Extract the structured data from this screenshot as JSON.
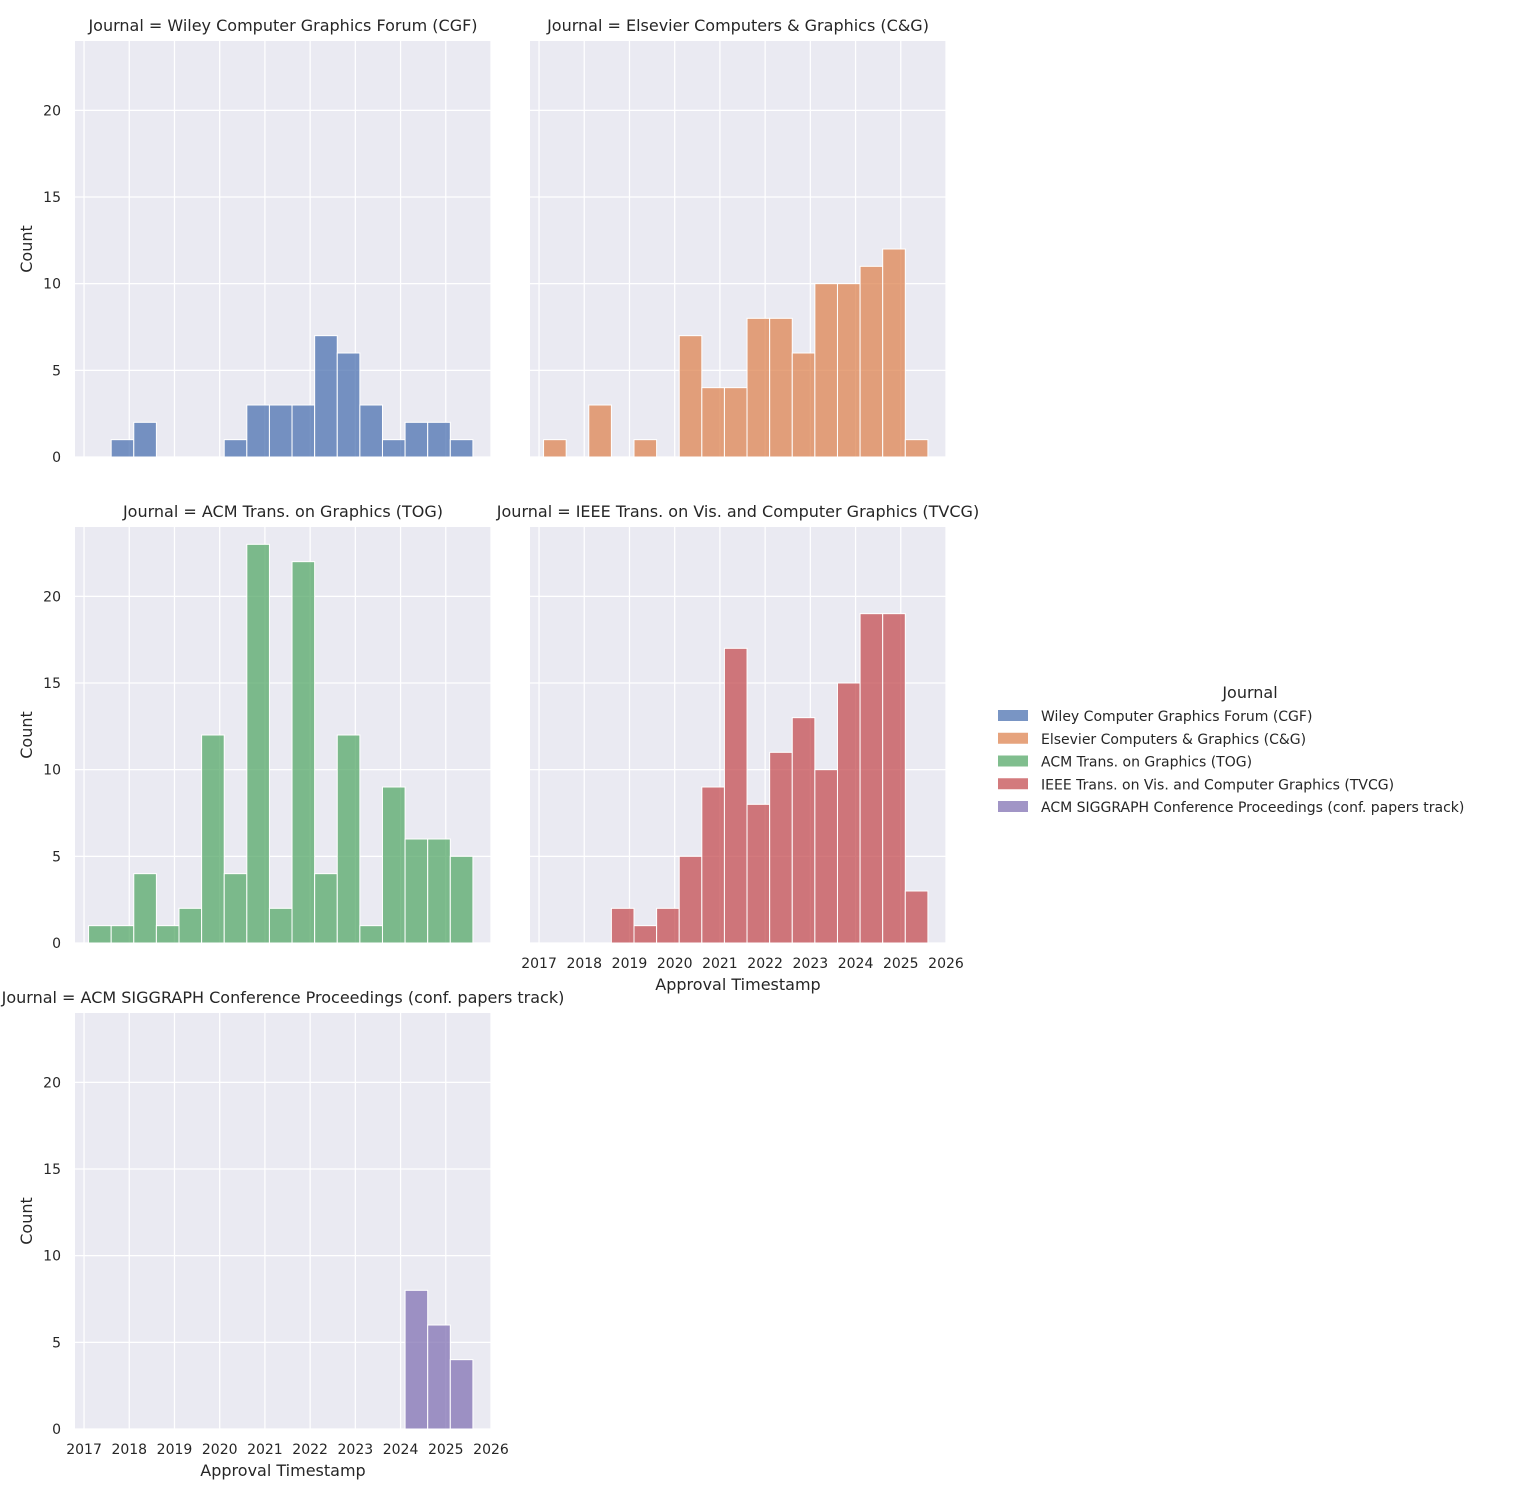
{
  "chart_data": {
    "type": "bar",
    "ylabel": "Count",
    "xlabel": "Approval Timestamp",
    "ylim": [
      0,
      24
    ],
    "xlim": [
      2016.8,
      2026
    ],
    "yticks": [
      "0",
      "5",
      "10",
      "15",
      "20"
    ],
    "xticks": [
      "2017",
      "2018",
      "2019",
      "2020",
      "2021",
      "2022",
      "2023",
      "2024",
      "2025",
      "2026"
    ],
    "bin_start": 2017.1,
    "bin_width": 0.5,
    "legend": {
      "title": "Journal",
      "entries": [
        {
          "label": "Wiley Computer Graphics Forum (CGF)",
          "color": "#4c72b0"
        },
        {
          "label": "Elsevier Computers & Graphics (C&G)",
          "color": "#dd8452"
        },
        {
          "label": "ACM Trans. on Graphics (TOG)",
          "color": "#55a868"
        },
        {
          "label": "IEEE Trans. on Vis. and Computer Graphics (TVCG)",
          "color": "#c44e52"
        },
        {
          "label": "ACM SIGGRAPH Conference Proceedings (conf. papers track)",
          "color": "#8172b3"
        }
      ]
    },
    "facets": [
      {
        "title": "Journal = Wiley Computer Graphics Forum (CGF)",
        "series": "Wiley Computer Graphics Forum (CGF)",
        "color": "#4c72b0",
        "counts": [
          0,
          1,
          2,
          0,
          0,
          0,
          1,
          3,
          3,
          3,
          7,
          6,
          3,
          1,
          2,
          2,
          1,
          0
        ]
      },
      {
        "title": "Journal = Elsevier Computers & Graphics (C&G)",
        "series": "Elsevier Computers & Graphics (C&G)",
        "color": "#dd8452",
        "counts": [
          1,
          0,
          3,
          0,
          1,
          0,
          7,
          4,
          4,
          8,
          8,
          6,
          10,
          10,
          11,
          12,
          1,
          0
        ]
      },
      {
        "title": "Journal = ACM Trans. on Graphics (TOG)",
        "series": "ACM Trans. on Graphics (TOG)",
        "color": "#55a868",
        "counts": [
          1,
          1,
          4,
          1,
          2,
          12,
          4,
          23,
          2,
          22,
          4,
          12,
          1,
          9,
          6,
          6,
          5,
          0
        ]
      },
      {
        "title": "Journal = IEEE Trans. on Vis. and Computer Graphics (TVCG)",
        "series": "IEEE Trans. on Vis. and Computer Graphics (TVCG)",
        "color": "#c44e52",
        "counts": [
          0,
          0,
          0,
          2,
          1,
          2,
          5,
          9,
          17,
          8,
          11,
          13,
          10,
          15,
          19,
          19,
          3,
          0
        ]
      },
      {
        "title": "Journal = ACM SIGGRAPH Conference Proceedings (conf. papers track)",
        "series": "ACM SIGGRAPH Conference Proceedings (conf. papers track)",
        "color": "#8172b3",
        "counts": [
          0,
          0,
          0,
          0,
          0,
          0,
          0,
          0,
          0,
          0,
          0,
          0,
          0,
          0,
          8,
          6,
          4,
          0
        ]
      }
    ]
  }
}
